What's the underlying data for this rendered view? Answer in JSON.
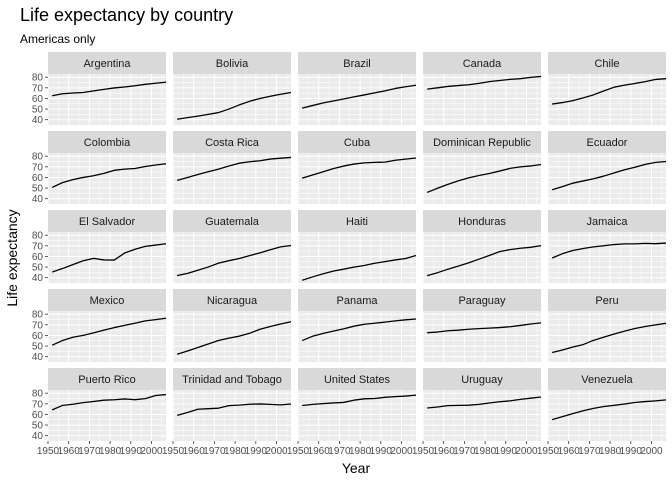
{
  "chart_data": {
    "type": "line",
    "title": "Life expectancy by country",
    "subtitle": "Americas only",
    "xlabel": "Year",
    "ylabel": "Life expectancy",
    "xlim": [
      1950,
      2007
    ],
    "ylim": [
      35,
      83
    ],
    "x_ticks": [
      1950,
      1960,
      1970,
      1980,
      1990,
      2000
    ],
    "y_ticks": [
      40,
      50,
      60,
      70,
      80
    ],
    "facet_layout": {
      "rows": 5,
      "cols": 5
    },
    "grid": true,
    "legend": "none",
    "colors": {
      "panel_bg": "#ebebeb",
      "strip_bg": "#d9d9d9",
      "grid": "#ffffff",
      "line": "#000000",
      "text": "#000000",
      "tick_text": "#4d4d4d"
    },
    "x": [
      1952,
      1957,
      1962,
      1967,
      1972,
      1977,
      1982,
      1987,
      1992,
      1997,
      2002,
      2007
    ],
    "series": [
      {
        "name": "Argentina",
        "values": [
          62.5,
          64.4,
          65.1,
          65.6,
          67.1,
          68.5,
          69.9,
          70.8,
          71.9,
          73.3,
          74.3,
          75.3
        ]
      },
      {
        "name": "Bolivia",
        "values": [
          40.4,
          41.9,
          43.4,
          45.0,
          46.7,
          50.0,
          53.9,
          57.3,
          59.96,
          62.1,
          63.9,
          65.6
        ]
      },
      {
        "name": "Brazil",
        "values": [
          50.9,
          53.3,
          55.7,
          57.6,
          59.5,
          61.5,
          63.3,
          65.2,
          67.1,
          69.4,
          71.0,
          72.4
        ]
      },
      {
        "name": "Canada",
        "values": [
          68.8,
          70.0,
          71.3,
          72.1,
          72.9,
          74.2,
          75.8,
          76.9,
          77.95,
          78.6,
          79.8,
          80.7
        ]
      },
      {
        "name": "Chile",
        "values": [
          54.7,
          56.1,
          57.9,
          60.5,
          63.4,
          67.1,
          70.6,
          72.5,
          74.1,
          75.8,
          77.9,
          78.6
        ]
      },
      {
        "name": "Colombia",
        "values": [
          50.6,
          55.1,
          57.9,
          60.0,
          61.6,
          63.8,
          66.7,
          67.8,
          68.4,
          70.3,
          71.7,
          72.9
        ]
      },
      {
        "name": "Costa Rica",
        "values": [
          57.2,
          60.0,
          62.8,
          65.4,
          67.8,
          70.8,
          73.4,
          74.8,
          75.7,
          77.3,
          78.1,
          78.8
        ]
      },
      {
        "name": "Cuba",
        "values": [
          59.4,
          62.3,
          65.2,
          68.3,
          70.7,
          72.6,
          73.7,
          74.2,
          74.4,
          76.2,
          77.2,
          78.3
        ]
      },
      {
        "name": "Dominican Republic",
        "values": [
          45.9,
          49.8,
          53.5,
          56.8,
          59.6,
          61.8,
          63.7,
          66.0,
          68.5,
          69.96,
          70.8,
          72.2
        ]
      },
      {
        "name": "Ecuador",
        "values": [
          48.4,
          51.4,
          54.6,
          56.7,
          58.8,
          61.3,
          64.3,
          67.2,
          69.6,
          72.3,
          74.2,
          75.0
        ]
      },
      {
        "name": "El Salvador",
        "values": [
          45.3,
          48.6,
          52.3,
          55.9,
          58.2,
          56.7,
          56.6,
          63.2,
          66.8,
          69.5,
          70.7,
          71.9
        ]
      },
      {
        "name": "Guatemala",
        "values": [
          42.0,
          44.1,
          47.0,
          50.0,
          53.7,
          56.0,
          58.1,
          60.8,
          63.4,
          66.3,
          68.98,
          70.3
        ]
      },
      {
        "name": "Haiti",
        "values": [
          37.6,
          40.7,
          43.6,
          46.2,
          48.0,
          49.9,
          51.5,
          53.6,
          55.1,
          56.7,
          58.1,
          60.9
        ]
      },
      {
        "name": "Honduras",
        "values": [
          41.9,
          44.7,
          48.0,
          50.9,
          53.9,
          57.4,
          60.9,
          64.5,
          66.4,
          67.7,
          68.6,
          70.2
        ]
      },
      {
        "name": "Jamaica",
        "values": [
          58.5,
          62.6,
          65.6,
          67.5,
          69.0,
          70.1,
          71.2,
          71.8,
          71.8,
          72.3,
          72.0,
          72.6
        ]
      },
      {
        "name": "Mexico",
        "values": [
          50.8,
          55.2,
          58.3,
          60.1,
          62.4,
          65.0,
          67.4,
          69.5,
          71.5,
          73.7,
          74.9,
          76.2
        ]
      },
      {
        "name": "Nicaragua",
        "values": [
          42.3,
          45.4,
          48.6,
          51.9,
          55.2,
          57.5,
          59.3,
          62.0,
          65.8,
          68.4,
          70.8,
          72.9
        ]
      },
      {
        "name": "Panama",
        "values": [
          55.2,
          59.2,
          61.8,
          64.1,
          66.2,
          68.7,
          70.5,
          71.5,
          72.5,
          73.7,
          74.7,
          75.5
        ]
      },
      {
        "name": "Paraguay",
        "values": [
          62.6,
          63.2,
          64.4,
          64.95,
          65.8,
          66.4,
          66.9,
          67.4,
          68.2,
          69.4,
          70.8,
          71.8
        ]
      },
      {
        "name": "Peru",
        "values": [
          43.9,
          46.3,
          49.1,
          51.4,
          55.4,
          58.4,
          61.4,
          64.1,
          66.5,
          68.4,
          69.9,
          71.4
        ]
      },
      {
        "name": "Puerto Rico",
        "values": [
          64.3,
          68.5,
          69.6,
          71.1,
          72.2,
          73.4,
          73.8,
          74.6,
          73.9,
          74.9,
          77.8,
          78.7
        ]
      },
      {
        "name": "Trinidad and Tobago",
        "values": [
          59.1,
          61.8,
          64.9,
          65.4,
          65.9,
          68.3,
          68.8,
          69.6,
          69.9,
          69.5,
          68.98,
          69.8
        ]
      },
      {
        "name": "United States",
        "values": [
          68.4,
          69.5,
          70.2,
          70.8,
          71.3,
          73.4,
          74.7,
          75.0,
          76.1,
          76.8,
          77.3,
          78.2
        ]
      },
      {
        "name": "Uruguay",
        "values": [
          66.1,
          67.0,
          68.3,
          68.5,
          68.7,
          69.5,
          70.8,
          71.9,
          72.8,
          74.2,
          75.3,
          76.4
        ]
      },
      {
        "name": "Venezuela",
        "values": [
          55.1,
          57.9,
          60.8,
          63.5,
          65.7,
          67.5,
          68.6,
          69.8,
          71.2,
          72.1,
          72.8,
          73.7
        ]
      }
    ]
  }
}
